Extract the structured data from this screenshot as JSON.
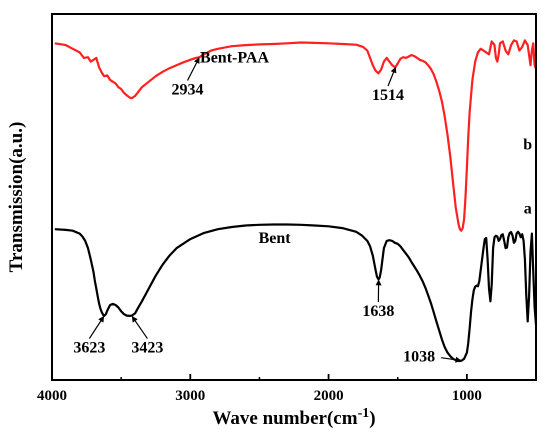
{
  "chart_data": {
    "type": "line",
    "title": "",
    "xlabel": "Wave number(cm",
    "xlabel_sup": "-1",
    "xlabel_close": ")",
    "ylabel": "Transmission(a.u.)",
    "xlim": [
      4000,
      500
    ],
    "x_reversed": true,
    "ylim": [
      0,
      1
    ],
    "y_ticks_shown": false,
    "grid": false,
    "legend": "none",
    "x_ticks": [
      4000,
      3000,
      2000,
      1000
    ],
    "x_tick_labels": [
      "4000",
      "3000",
      "2000",
      "1000"
    ],
    "series": [
      {
        "name": "Bent-PAA",
        "tag": "b",
        "color": "#ff2020",
        "x": [
          3980,
          3900,
          3850,
          3800,
          3770,
          3740,
          3720,
          3700,
          3680,
          3660,
          3640,
          3623,
          3600,
          3580,
          3560,
          3540,
          3520,
          3500,
          3480,
          3460,
          3440,
          3423,
          3400,
          3380,
          3350,
          3300,
          3250,
          3200,
          3150,
          3100,
          3050,
          3000,
          2960,
          2934,
          2900,
          2850,
          2800,
          2700,
          2600,
          2500,
          2400,
          2300,
          2200,
          2100,
          2000,
          1900,
          1800,
          1750,
          1720,
          1700,
          1680,
          1660,
          1640,
          1620,
          1600,
          1580,
          1560,
          1540,
          1520,
          1514,
          1500,
          1480,
          1460,
          1440,
          1420,
          1400,
          1380,
          1360,
          1340,
          1320,
          1300,
          1280,
          1260,
          1240,
          1220,
          1200,
          1180,
          1160,
          1140,
          1120,
          1100,
          1080,
          1060,
          1050,
          1040,
          1030,
          1020,
          1010,
          1000,
          990,
          980,
          960,
          940,
          920,
          900,
          880,
          860,
          840,
          820,
          800,
          790,
          780,
          770,
          760,
          740,
          720,
          700,
          680,
          660,
          640,
          620,
          600,
          580,
          560,
          540,
          530,
          520,
          510,
          500
        ],
        "y": [
          0.92,
          0.915,
          0.905,
          0.895,
          0.88,
          0.882,
          0.87,
          0.875,
          0.88,
          0.855,
          0.84,
          0.83,
          0.832,
          0.82,
          0.815,
          0.81,
          0.8,
          0.795,
          0.785,
          0.778,
          0.772,
          0.77,
          0.776,
          0.785,
          0.8,
          0.815,
          0.83,
          0.842,
          0.852,
          0.86,
          0.868,
          0.875,
          0.88,
          0.882,
          0.89,
          0.9,
          0.905,
          0.912,
          0.915,
          0.917,
          0.918,
          0.92,
          0.922,
          0.921,
          0.92,
          0.918,
          0.916,
          0.91,
          0.9,
          0.88,
          0.86,
          0.845,
          0.838,
          0.848,
          0.87,
          0.88,
          0.87,
          0.86,
          0.855,
          0.856,
          0.865,
          0.878,
          0.882,
          0.88,
          0.884,
          0.888,
          0.885,
          0.88,
          0.875,
          0.872,
          0.868,
          0.86,
          0.85,
          0.835,
          0.815,
          0.79,
          0.76,
          0.72,
          0.67,
          0.61,
          0.54,
          0.47,
          0.425,
          0.412,
          0.408,
          0.415,
          0.44,
          0.5,
          0.58,
          0.66,
          0.73,
          0.82,
          0.87,
          0.895,
          0.905,
          0.9,
          0.895,
          0.89,
          0.925,
          0.915,
          0.88,
          0.87,
          0.89,
          0.92,
          0.925,
          0.9,
          0.89,
          0.915,
          0.928,
          0.925,
          0.9,
          0.91,
          0.928,
          0.915,
          0.86,
          0.9,
          0.92,
          0.86,
          0.85
        ]
      },
      {
        "name": "Bent",
        "tag": "a",
        "color": "#000000",
        "x": [
          3980,
          3900,
          3850,
          3800,
          3780,
          3760,
          3740,
          3720,
          3700,
          3690,
          3680,
          3670,
          3660,
          3650,
          3640,
          3630,
          3623,
          3610,
          3600,
          3580,
          3560,
          3540,
          3520,
          3500,
          3480,
          3460,
          3440,
          3423,
          3400,
          3380,
          3350,
          3300,
          3250,
          3200,
          3150,
          3100,
          3000,
          2900,
          2800,
          2700,
          2600,
          2500,
          2400,
          2300,
          2200,
          2100,
          2000,
          1900,
          1850,
          1800,
          1760,
          1720,
          1700,
          1680,
          1660,
          1650,
          1638,
          1630,
          1620,
          1610,
          1600,
          1580,
          1560,
          1540,
          1520,
          1500,
          1480,
          1460,
          1440,
          1420,
          1400,
          1380,
          1360,
          1340,
          1320,
          1300,
          1280,
          1260,
          1240,
          1220,
          1200,
          1180,
          1160,
          1140,
          1120,
          1100,
          1080,
          1060,
          1050,
          1038,
          1020,
          1000,
          990,
          980,
          970,
          960,
          950,
          940,
          930,
          920,
          910,
          900,
          890,
          880,
          870,
          860,
          850,
          840,
          830,
          820,
          810,
          800,
          790,
          780,
          770,
          760,
          750,
          740,
          730,
          720,
          710,
          700,
          690,
          680,
          670,
          660,
          650,
          640,
          630,
          620,
          610,
          600,
          590,
          580,
          570,
          560,
          550,
          540,
          530,
          520,
          510,
          500
        ],
        "y": [
          0.412,
          0.41,
          0.408,
          0.4,
          0.392,
          0.38,
          0.36,
          0.33,
          0.295,
          0.27,
          0.25,
          0.23,
          0.21,
          0.195,
          0.185,
          0.178,
          0.175,
          0.18,
          0.19,
          0.205,
          0.208,
          0.205,
          0.198,
          0.188,
          0.18,
          0.176,
          0.175,
          0.176,
          0.182,
          0.195,
          0.215,
          0.25,
          0.285,
          0.315,
          0.34,
          0.36,
          0.385,
          0.402,
          0.412,
          0.418,
          0.422,
          0.424,
          0.425,
          0.425,
          0.424,
          0.422,
          0.42,
          0.415,
          0.41,
          0.405,
          0.395,
          0.38,
          0.365,
          0.34,
          0.3,
          0.282,
          0.275,
          0.28,
          0.3,
          0.33,
          0.36,
          0.38,
          0.382,
          0.38,
          0.375,
          0.372,
          0.365,
          0.355,
          0.345,
          0.335,
          0.322,
          0.31,
          0.298,
          0.285,
          0.27,
          0.252,
          0.232,
          0.21,
          0.185,
          0.16,
          0.135,
          0.11,
          0.09,
          0.075,
          0.065,
          0.058,
          0.054,
          0.052,
          0.052,
          0.053,
          0.058,
          0.075,
          0.1,
          0.14,
          0.185,
          0.22,
          0.245,
          0.255,
          0.258,
          0.256,
          0.27,
          0.3,
          0.33,
          0.36,
          0.385,
          0.388,
          0.33,
          0.25,
          0.215,
          0.26,
          0.36,
          0.39,
          0.394,
          0.392,
          0.38,
          0.385,
          0.396,
          0.398,
          0.38,
          0.36,
          0.362,
          0.39,
          0.402,
          0.404,
          0.395,
          0.375,
          0.38,
          0.4,
          0.405,
          0.4,
          0.39,
          0.398,
          0.38,
          0.33,
          0.23,
          0.16,
          0.23,
          0.35,
          0.4,
          0.3,
          0.2,
          0.15
        ]
      }
    ],
    "series_labels": [
      {
        "text": "Bent-PAA",
        "series": 0,
        "x": 2680,
        "y": 0.868
      },
      {
        "text": "b",
        "series": 0,
        "x": 560,
        "y": 0.63
      },
      {
        "text": "Bent",
        "series": 1,
        "x": 2390,
        "y": 0.375
      },
      {
        "text": "a",
        "series": 1,
        "x": 560,
        "y": 0.455
      }
    ],
    "annotations": [
      {
        "text": "2934",
        "x": 2934,
        "y": 0.882,
        "label_x": 3020,
        "label_y": 0.78
      },
      {
        "text": "1514",
        "x": 1514,
        "y": 0.856,
        "label_x": 1570,
        "label_y": 0.765
      },
      {
        "text": "1638",
        "x": 1638,
        "y": 0.275,
        "label_x": 1640,
        "label_y": 0.175
      },
      {
        "text": "3623",
        "x": 3623,
        "y": 0.175,
        "label_x": 3730,
        "label_y": 0.075
      },
      {
        "text": "3423",
        "x": 3423,
        "y": 0.175,
        "label_x": 3310,
        "label_y": 0.075
      },
      {
        "text": "1038",
        "x": 1038,
        "y": 0.053,
        "label_x": 1345,
        "label_y": 0.05
      }
    ]
  }
}
